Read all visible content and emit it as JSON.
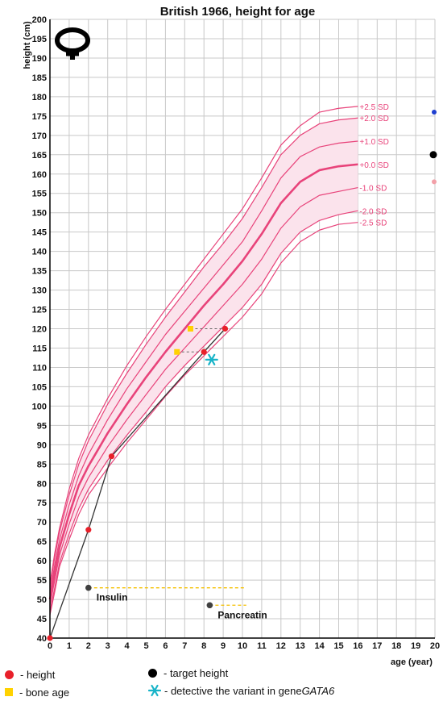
{
  "chart_data": {
    "type": "line",
    "title": "British 1966, height for age",
    "xlabel": "age (year)",
    "ylabel": "height (cm)",
    "xlim": [
      0,
      20
    ],
    "ylim": [
      40,
      200
    ],
    "x_ticks": [
      0,
      1,
      2,
      3,
      4,
      5,
      6,
      7,
      8,
      9,
      10,
      11,
      12,
      13,
      14,
      15,
      16,
      17,
      18,
      19,
      20
    ],
    "y_ticks": [
      40,
      45,
      50,
      55,
      60,
      65,
      70,
      75,
      80,
      85,
      90,
      95,
      100,
      105,
      110,
      115,
      120,
      125,
      130,
      135,
      140,
      145,
      150,
      155,
      160,
      165,
      170,
      175,
      180,
      185,
      190,
      195,
      200
    ],
    "grid": true,
    "sex_symbol": "female-symbol-icon",
    "reference_ages": [
      0,
      0.25,
      0.5,
      1,
      1.5,
      2,
      3,
      4,
      5,
      6,
      7,
      8,
      9,
      10,
      11,
      12,
      13,
      14,
      15,
      16
    ],
    "reference_curves": [
      {
        "name": "+2.5 SD",
        "values": [
          54,
          62,
          68.5,
          78.5,
          86.5,
          92.5,
          102,
          110.5,
          118,
          125,
          131.5,
          138,
          144.5,
          151,
          159,
          167.5,
          172.5,
          176,
          177,
          177.5
        ]
      },
      {
        "name": "+2.0 SD",
        "values": [
          53,
          61,
          67.5,
          77,
          85,
          91,
          100.5,
          108.5,
          116,
          123,
          129.5,
          136,
          142,
          148.5,
          156.5,
          165,
          170,
          173,
          174,
          174.5
        ]
      },
      {
        "name": "+1.0 SD",
        "values": [
          51.5,
          59,
          65.5,
          74.5,
          82,
          87.5,
          96.5,
          104.5,
          111.5,
          118.5,
          124.5,
          130.5,
          136.5,
          142.5,
          150.5,
          159,
          164.5,
          167,
          168,
          168.5
        ]
      },
      {
        "name": "+0.0 SD",
        "values": [
          50,
          57,
          63.5,
          72,
          79.5,
          84.5,
          93,
          100.5,
          107.5,
          114,
          120,
          126,
          131.5,
          137.5,
          144.5,
          152.5,
          158,
          161,
          162,
          162.5
        ]
      },
      {
        "name": "-1.0 SD",
        "values": [
          48.5,
          55,
          61.5,
          69.5,
          76.5,
          81.5,
          89.5,
          96.5,
          103,
          109.5,
          115,
          120.5,
          126,
          131.5,
          138,
          146,
          151.5,
          154.5,
          155.5,
          156.5
        ]
      },
      {
        "name": "-2.0 SD",
        "values": [
          47,
          53,
          59.5,
          67,
          73.5,
          78.5,
          86,
          92.5,
          98.5,
          105,
          110.5,
          115.5,
          120.5,
          125.5,
          131.5,
          139.5,
          145,
          148,
          149.5,
          150.5
        ]
      },
      {
        "name": "-2.5 SD",
        "values": [
          46,
          52,
          58.5,
          65.5,
          72,
          77,
          84,
          90.5,
          96.5,
          102.5,
          108,
          113,
          118,
          123,
          129,
          137,
          142.5,
          145.5,
          147,
          147.5
        ]
      }
    ],
    "shaded_band": [
      "-2.0 SD",
      "+2.0 SD"
    ],
    "series": [
      {
        "name": "height",
        "color": "#e8202a",
        "x": [
          0,
          2.0,
          3.2,
          8.0,
          9.1
        ],
        "y": [
          40,
          68,
          87,
          114,
          120
        ]
      },
      {
        "name": "bone age",
        "color": "#ffd200",
        "x": [
          6.6,
          7.3
        ],
        "y": [
          114,
          120
        ]
      },
      {
        "name": "target height",
        "color": "#000000",
        "x": [
          20
        ],
        "y": [
          165
        ]
      }
    ],
    "bone_age_links": [
      {
        "from": [
          6.6,
          114
        ],
        "to": [
          8.0,
          114
        ]
      },
      {
        "from": [
          7.3,
          120
        ],
        "to": [
          9.1,
          120
        ]
      }
    ],
    "variant_marker": {
      "x": 8.4,
      "y": 112,
      "color": "#18b4c8"
    },
    "edge_markers": [
      {
        "x": 20,
        "y": 176,
        "color": "#1f3fd0"
      },
      {
        "x": 20,
        "y": 158,
        "color": "#f2a0a8"
      }
    ],
    "treatments": [
      {
        "label": "Insulin",
        "start": 2.0,
        "end": 10.2,
        "y": 53
      },
      {
        "label": "Pancreatin",
        "start": 8.3,
        "end": 10.2,
        "y": 48.5
      }
    ]
  },
  "legend": {
    "height_label": "- height",
    "bone_age_label": "- bone age",
    "target_label": "- target height",
    "variant_prefix": "- detective the variant in gene ",
    "variant_gene": "GATA6"
  }
}
